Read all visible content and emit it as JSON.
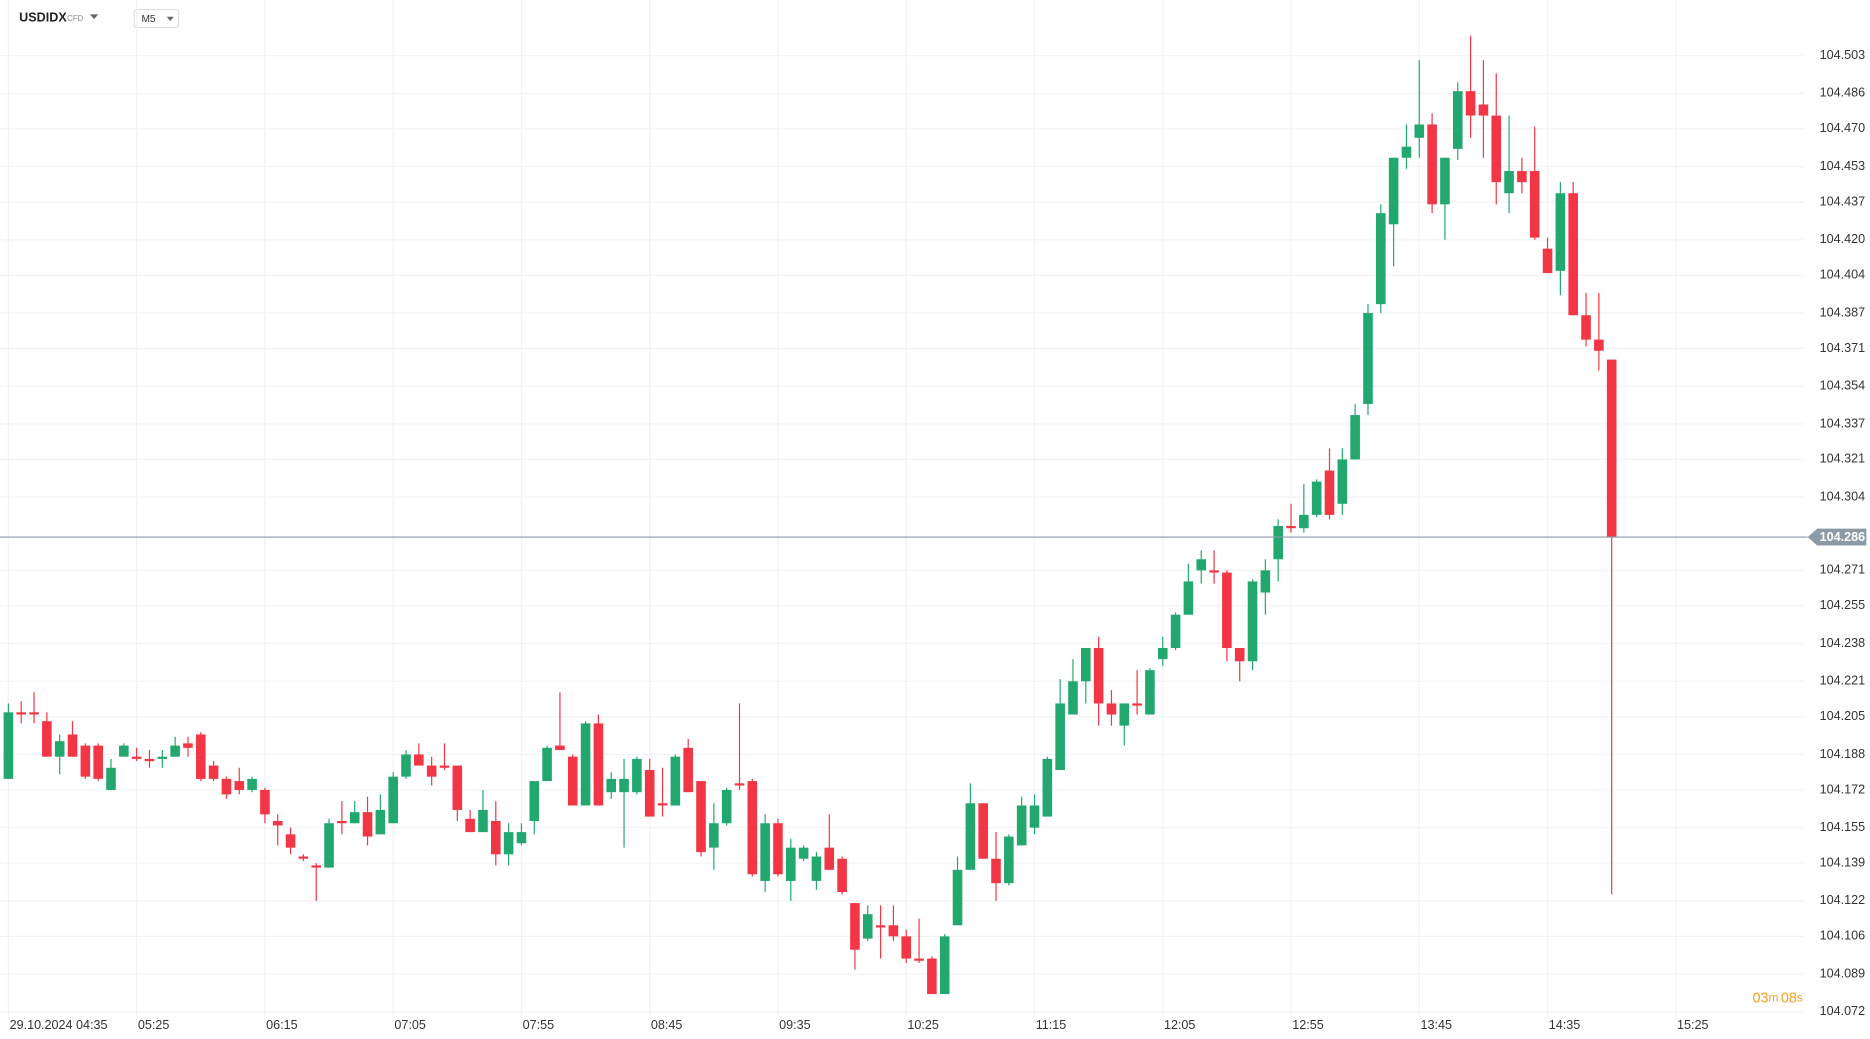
{
  "header": {
    "symbol": "USDIDX",
    "kind": "CFD",
    "interval": "M5"
  },
  "countdown": {
    "minutes": "03",
    "minutes_unit": "m",
    "seconds": "08",
    "seconds_unit": "s"
  },
  "chart_data": {
    "type": "candlestick",
    "categories": [
      "29.10.2024 04:35",
      null,
      null,
      null,
      null,
      null,
      null,
      null,
      null,
      null,
      "05:25",
      null,
      null,
      null,
      null,
      null,
      null,
      null,
      null,
      null,
      "06:15",
      null,
      null,
      null,
      null,
      null,
      null,
      null,
      null,
      null,
      "07:05",
      null,
      null,
      null,
      null,
      null,
      null,
      null,
      null,
      null,
      "07:55",
      null,
      null,
      null,
      null,
      null,
      null,
      null,
      null,
      null,
      "08:45",
      null,
      null,
      null,
      null,
      null,
      null,
      null,
      null,
      null,
      "09:35",
      null,
      null,
      null,
      null,
      null,
      null,
      null,
      null,
      null,
      "10:25",
      null,
      null,
      null,
      null,
      null,
      null,
      null,
      null,
      null,
      "11:15",
      null,
      null,
      null,
      null,
      null,
      null,
      null,
      null,
      null,
      "12:05",
      null,
      null,
      null,
      null,
      null,
      null,
      null,
      null,
      null,
      "12:55",
      null,
      null,
      null,
      null,
      null,
      null,
      null,
      null,
      null,
      "13:45",
      null,
      null,
      null,
      null,
      null,
      null,
      null,
      null,
      null,
      "14:35",
      null,
      null,
      null,
      null,
      null,
      null,
      null,
      null,
      null,
      "15:25"
    ],
    "open": [
      104.177,
      104.207,
      104.207,
      104.203,
      104.187,
      104.197,
      104.192,
      104.192,
      104.172,
      104.187,
      104.187,
      104.186,
      104.186,
      104.187,
      104.193,
      104.197,
      104.183,
      104.177,
      104.176,
      104.172,
      104.172,
      104.158,
      104.152,
      104.142,
      104.138,
      104.137,
      104.158,
      104.157,
      104.162,
      104.152,
      104.157,
      104.178,
      104.188,
      104.183,
      104.183,
      104.183,
      104.159,
      104.153,
      104.158,
      104.143,
      104.148,
      104.158,
      104.176,
      104.192,
      104.187,
      104.165,
      104.202,
      104.171,
      104.171,
      104.171,
      104.181,
      104.166,
      104.165,
      104.191,
      104.176,
      104.146,
      104.157,
      104.175,
      104.176,
      104.131,
      104.157,
      104.131,
      104.141,
      104.131,
      104.146,
      104.141,
      104.121,
      104.105,
      104.111,
      104.111,
      104.106,
      104.096,
      104.096,
      104.08,
      104.111,
      104.136,
      104.166,
      104.141,
      104.13,
      104.147,
      104.155,
      104.16,
      104.181,
      104.206,
      104.221,
      104.236,
      104.211,
      104.201,
      104.211,
      104.206,
      104.231,
      104.236,
      104.251,
      104.271,
      104.271,
      104.27,
      104.236,
      104.23,
      104.261,
      104.276,
      104.291,
      104.29,
      104.296,
      104.316,
      104.301,
      104.321,
      104.346,
      104.391,
      104.427,
      104.457,
      104.466,
      104.472,
      104.436,
      104.461,
      104.487,
      104.481,
      104.476,
      104.441,
      104.451,
      104.451,
      104.416,
      104.406,
      104.441,
      104.386,
      104.375,
      104.366,
      null,
      null,
      null,
      null,
      null
    ],
    "high": [
      104.211,
      104.212,
      104.216,
      104.207,
      104.197,
      104.203,
      104.193,
      104.193,
      104.186,
      104.193,
      104.191,
      104.19,
      104.19,
      104.196,
      104.196,
      104.198,
      104.185,
      104.178,
      104.182,
      104.178,
      104.173,
      104.161,
      104.155,
      104.143,
      104.139,
      104.159,
      104.167,
      104.167,
      104.169,
      104.17,
      104.18,
      104.19,
      104.193,
      104.187,
      104.193,
      104.183,
      104.163,
      104.172,
      104.167,
      104.157,
      104.157,
      104.176,
      104.192,
      104.216,
      104.188,
      104.203,
      104.206,
      104.18,
      104.186,
      104.187,
      104.186,
      104.182,
      104.188,
      104.195,
      104.176,
      104.166,
      104.173,
      104.211,
      104.177,
      104.161,
      104.159,
      104.15,
      104.147,
      104.144,
      104.161,
      104.142,
      104.121,
      104.12,
      104.12,
      104.12,
      104.109,
      104.114,
      104.097,
      104.107,
      104.142,
      104.175,
      104.166,
      104.153,
      104.152,
      104.169,
      104.17,
      104.187,
      104.222,
      104.231,
      104.236,
      104.241,
      104.217,
      104.211,
      104.226,
      104.227,
      104.241,
      104.252,
      104.274,
      104.28,
      104.28,
      104.271,
      104.236,
      104.267,
      104.276,
      104.294,
      104.301,
      104.31,
      104.312,
      104.326,
      104.326,
      104.346,
      104.391,
      104.436,
      104.457,
      104.472,
      104.501,
      104.477,
      104.457,
      104.491,
      104.512,
      104.501,
      104.495,
      104.476,
      104.457,
      104.471,
      104.421,
      104.446,
      104.446,
      104.396,
      104.396,
      104.366,
      null,
      null,
      null,
      null,
      null
    ],
    "low": [
      104.177,
      104.202,
      104.202,
      104.187,
      104.179,
      104.187,
      104.177,
      104.176,
      104.172,
      104.187,
      104.185,
      104.182,
      104.182,
      104.187,
      104.187,
      104.176,
      104.176,
      104.168,
      104.17,
      104.171,
      104.157,
      104.147,
      104.143,
      104.14,
      104.122,
      104.137,
      104.152,
      104.157,
      104.147,
      104.152,
      104.157,
      104.177,
      104.183,
      104.174,
      104.181,
      104.158,
      104.153,
      104.153,
      104.138,
      104.138,
      104.147,
      104.152,
      104.176,
      104.19,
      104.165,
      104.165,
      104.165,
      104.168,
      104.146,
      104.17,
      104.16,
      104.16,
      104.165,
      104.171,
      104.142,
      104.136,
      104.156,
      104.172,
      104.133,
      104.126,
      104.133,
      104.122,
      104.14,
      104.127,
      104.136,
      104.125,
      104.091,
      104.104,
      104.096,
      104.104,
      104.094,
      104.094,
      104.08,
      104.08,
      104.111,
      104.136,
      104.141,
      104.122,
      104.129,
      104.147,
      104.152,
      104.16,
      104.181,
      104.206,
      104.211,
      104.201,
      104.201,
      104.192,
      104.206,
      104.206,
      104.228,
      104.235,
      104.251,
      104.265,
      104.265,
      104.23,
      104.221,
      104.226,
      104.251,
      104.266,
      104.288,
      104.288,
      104.295,
      104.294,
      104.296,
      104.321,
      104.341,
      104.387,
      104.408,
      104.452,
      104.457,
      104.432,
      104.42,
      104.456,
      104.466,
      104.457,
      104.436,
      104.432,
      104.441,
      104.42,
      104.405,
      104.395,
      104.386,
      104.372,
      104.361,
      104.125,
      null,
      null,
      null,
      null,
      null
    ],
    "close": [
      104.207,
      104.206,
      104.206,
      104.187,
      104.194,
      104.187,
      104.178,
      104.177,
      104.182,
      104.192,
      104.186,
      104.185,
      104.187,
      104.192,
      104.191,
      104.177,
      104.177,
      104.17,
      104.172,
      104.177,
      104.161,
      104.156,
      104.146,
      104.141,
      104.137,
      104.157,
      104.157,
      104.162,
      104.151,
      104.163,
      104.178,
      104.188,
      104.183,
      104.178,
      104.182,
      104.163,
      104.153,
      104.163,
      104.143,
      104.153,
      104.153,
      104.176,
      104.191,
      104.19,
      104.165,
      104.202,
      104.165,
      104.177,
      104.177,
      104.186,
      104.16,
      104.165,
      104.187,
      104.171,
      104.144,
      104.157,
      104.172,
      104.174,
      104.134,
      104.157,
      104.134,
      104.146,
      104.146,
      104.142,
      104.136,
      104.126,
      104.1,
      104.116,
      104.11,
      104.106,
      104.096,
      104.095,
      104.08,
      104.106,
      104.136,
      104.166,
      104.141,
      104.13,
      104.151,
      104.165,
      104.165,
      104.186,
      104.211,
      104.221,
      104.236,
      104.211,
      104.206,
      104.211,
      104.21,
      104.226,
      104.236,
      104.251,
      104.266,
      104.276,
      104.27,
      104.236,
      104.23,
      104.266,
      104.271,
      104.291,
      104.29,
      104.296,
      104.311,
      104.296,
      104.321,
      104.341,
      104.387,
      104.432,
      104.457,
      104.462,
      104.472,
      104.436,
      104.457,
      104.487,
      104.476,
      104.476,
      104.446,
      104.451,
      104.446,
      104.421,
      104.405,
      104.441,
      104.386,
      104.375,
      104.37,
      104.286,
      null,
      null,
      null,
      null,
      null
    ],
    "up_color": "#22a86f",
    "down_color": "#f23645",
    "last_price": 104.286,
    "last_price_color": "#8c9aa8",
    "ylim": [
      104.07,
      104.52
    ],
    "yticks": [
      104.503,
      104.486,
      {
        "value": 104.47,
        "label": "104.470"
      },
      104.453,
      104.437,
      {
        "value": 104.42,
        "label": "104.420"
      },
      104.404,
      104.387,
      104.371,
      104.354,
      104.337,
      104.321,
      104.304,
      104.271,
      104.255,
      104.238,
      104.221,
      104.205,
      104.188,
      104.172,
      104.155,
      104.139,
      104.122,
      104.106,
      104.089,
      104.072
    ],
    "grid": true
  }
}
